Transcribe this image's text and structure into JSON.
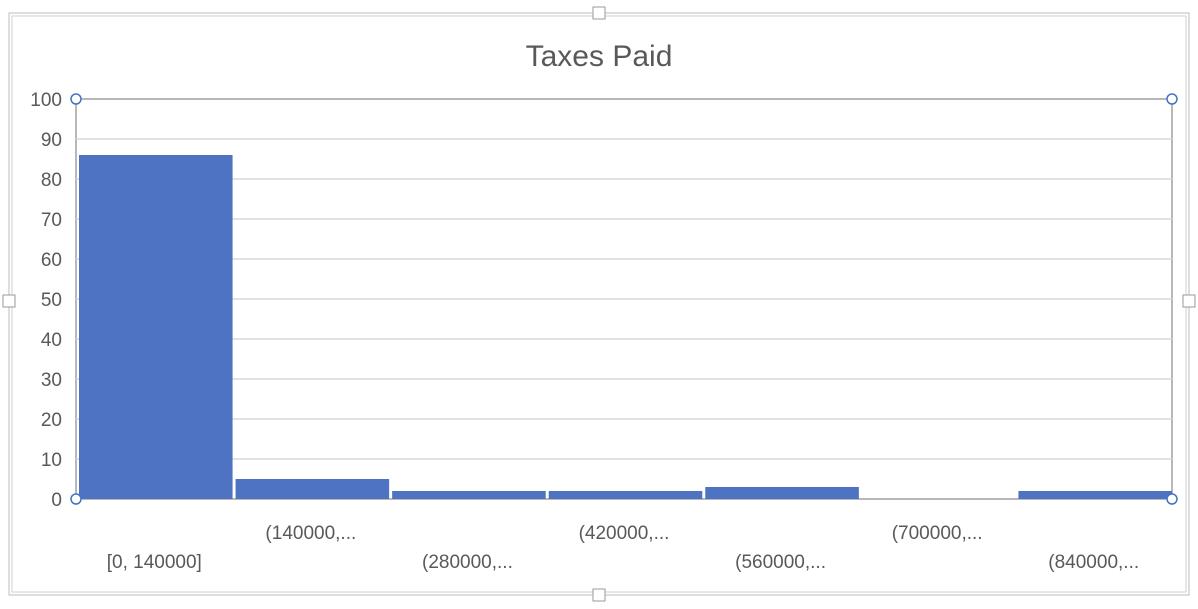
{
  "chart_data": {
    "type": "bar",
    "title": "Taxes Paid",
    "categories": [
      "[0, 140000]",
      "(140000,...",
      "(280000,...",
      "(420000,...",
      "(560000,...",
      "(700000,...",
      "(840000,..."
    ],
    "values": [
      86,
      5,
      2,
      2,
      3,
      0,
      2
    ],
    "yticks": [
      "0",
      "10",
      "20",
      "30",
      "40",
      "50",
      "60",
      "70",
      "80",
      "90",
      "100"
    ],
    "ylim": [
      0,
      100
    ],
    "xlabel": "",
    "ylabel": "",
    "grid": true,
    "legend": "none",
    "colors": {
      "bar": "#4E73C3",
      "grid": "#D9D9D9",
      "title": "#595959",
      "tick": "#595959",
      "frame": "#A0A0A0",
      "handle": "#4472C4"
    }
  }
}
